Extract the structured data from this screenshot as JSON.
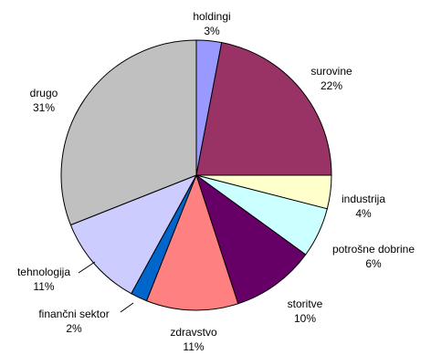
{
  "chart_data": {
    "type": "pie",
    "title": "",
    "start_angle_deg": 90,
    "direction": "clockwise",
    "slices": [
      {
        "name": "holdingi",
        "value": 3,
        "label": "3%",
        "color": "#9999ff"
      },
      {
        "name": "surovine",
        "value": 22,
        "label": "22%",
        "color": "#993366"
      },
      {
        "name": "industrija",
        "value": 4,
        "label": "4%",
        "color": "#ffffcc"
      },
      {
        "name": "potrošne dobrine",
        "value": 6,
        "label": "6%",
        "color": "#ccffff"
      },
      {
        "name": "storitve",
        "value": 10,
        "label": "10%",
        "color": "#660066"
      },
      {
        "name": "zdravstvo",
        "value": 11,
        "label": "11%",
        "color": "#ff8080"
      },
      {
        "name": "finančni sektor",
        "value": 2,
        "label": "2%",
        "color": "#0066cc"
      },
      {
        "name": "tehnologija",
        "value": 11,
        "label": "11%",
        "color": "#ccccff"
      },
      {
        "name": "drugo",
        "value": 31,
        "label": "31%",
        "color": "#c0c0c0"
      }
    ]
  }
}
